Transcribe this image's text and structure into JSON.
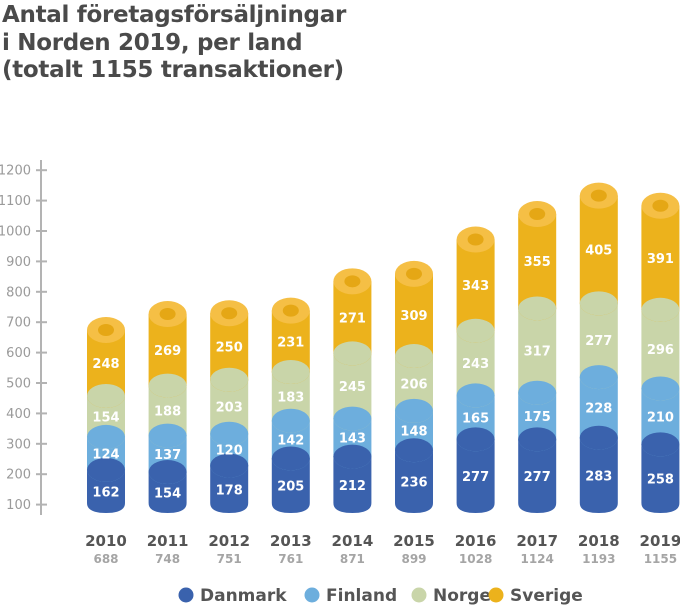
{
  "chart_data": {
    "type": "bar",
    "stacked": true,
    "title_lines": [
      "Antal företagsförsäljningar",
      "i Norden 2019, per land",
      "(totalt 1155 transaktioner)"
    ],
    "categories": [
      "2010",
      "2011",
      "2012",
      "2013",
      "2014",
      "2015",
      "2016",
      "2017",
      "2018",
      "2019"
    ],
    "totals": [
      "688",
      "748",
      "751",
      "761",
      "871",
      "899",
      "1028",
      "1124",
      "1193",
      "1155"
    ],
    "series": [
      {
        "name": "Danmark",
        "color": "#3a62ad",
        "values": [
          162,
          154,
          178,
          205,
          212,
          236,
          277,
          277,
          283,
          258
        ]
      },
      {
        "name": "Finland",
        "color": "#6daedd",
        "values": [
          124,
          137,
          120,
          142,
          143,
          148,
          165,
          175,
          228,
          210
        ]
      },
      {
        "name": "Norge",
        "color": "#c9d5a9",
        "values": [
          154,
          188,
          203,
          183,
          245,
          206,
          243,
          317,
          277,
          296
        ]
      },
      {
        "name": "Sverige",
        "color": "#ecb21c",
        "values": [
          248,
          269,
          250,
          231,
          271,
          309,
          343,
          355,
          405,
          391
        ]
      }
    ],
    "y_ticks": [
      "100",
      "200",
      "300",
      "400",
      "500",
      "600",
      "700",
      "800",
      "900",
      "1000",
      "1100",
      "1200"
    ],
    "ylim": [
      0,
      1200
    ],
    "legend_position": "bottom"
  }
}
